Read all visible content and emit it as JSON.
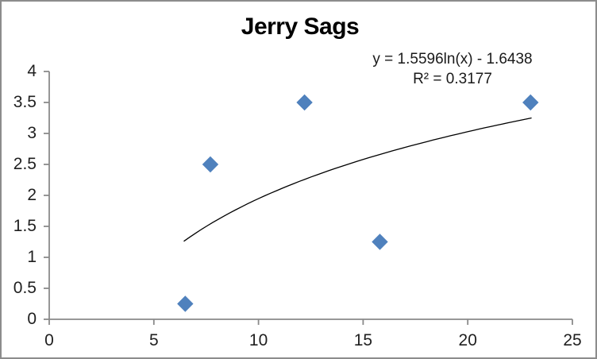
{
  "chart_data": {
    "type": "scatter",
    "title": "Jerry Sags",
    "points": [
      {
        "x": 6.5,
        "y": 0.25
      },
      {
        "x": 7.7,
        "y": 2.5
      },
      {
        "x": 12.2,
        "y": 3.5
      },
      {
        "x": 15.8,
        "y": 1.25
      },
      {
        "x": 23.0,
        "y": 3.5
      }
    ],
    "x_axis": {
      "min": 0,
      "max": 25,
      "step": 5,
      "ticks": [
        "0",
        "5",
        "10",
        "15",
        "20",
        "25"
      ]
    },
    "y_axis": {
      "min": 0,
      "max": 4,
      "step": 0.5,
      "ticks": [
        "0",
        "0.5",
        "1",
        "1.5",
        "2",
        "2.5",
        "3",
        "3.5",
        "4"
      ]
    },
    "trendline": {
      "type": "logarithmic",
      "a": 1.5596,
      "b": -1.6438,
      "equation": "y = 1.5596ln(x) - 1.6438",
      "r_squared": "R² = 0.3177",
      "x_start": 6.43,
      "x_end": 23.05,
      "color": "#000000"
    },
    "marker": {
      "shape": "diamond",
      "color": "#4F81BD",
      "size": 19
    },
    "axis_color": "#8a8a8a",
    "label_color": "#1f1f1f",
    "grid": false,
    "legend": false
  }
}
